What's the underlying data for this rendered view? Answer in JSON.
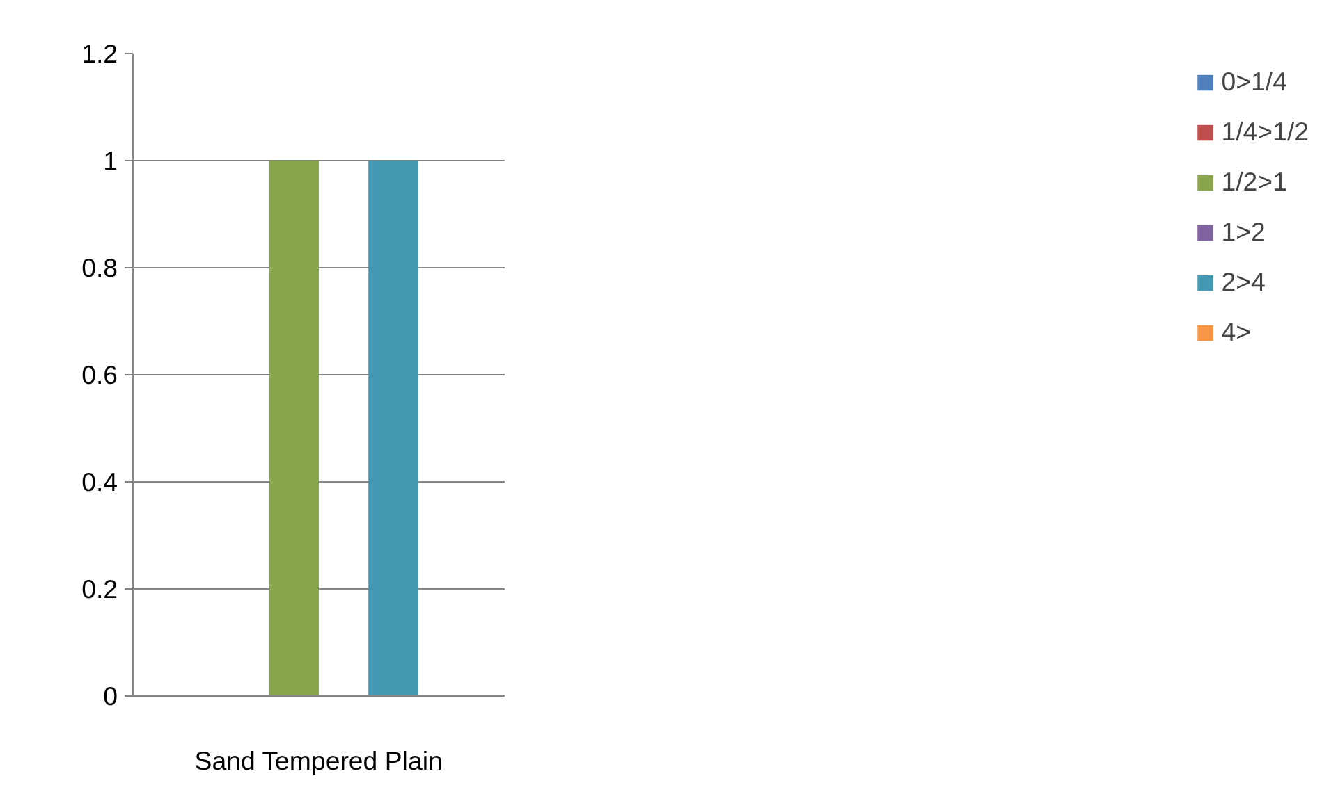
{
  "chart_data": {
    "type": "bar",
    "categories": [
      "Sand Tempered Plain"
    ],
    "series": [
      {
        "name": "0>1/4",
        "color": "#4f81bd",
        "values": [
          0
        ]
      },
      {
        "name": "1/4>1/2",
        "color": "#c0504d",
        "values": [
          0
        ]
      },
      {
        "name": "1/2>1",
        "color": "#8aa64c",
        "values": [
          1
        ]
      },
      {
        "name": "1>2",
        "color": "#8064a2",
        "values": [
          0
        ]
      },
      {
        "name": "2>4",
        "color": "#4399b1",
        "values": [
          1
        ]
      },
      {
        "name": "4>",
        "color": "#f79646",
        "values": [
          0
        ]
      }
    ],
    "ylim": [
      0,
      1.2
    ],
    "yticks": [
      0,
      0.2,
      0.4,
      0.6,
      0.8,
      1,
      1.2
    ],
    "grid": "y",
    "legend": "right"
  }
}
